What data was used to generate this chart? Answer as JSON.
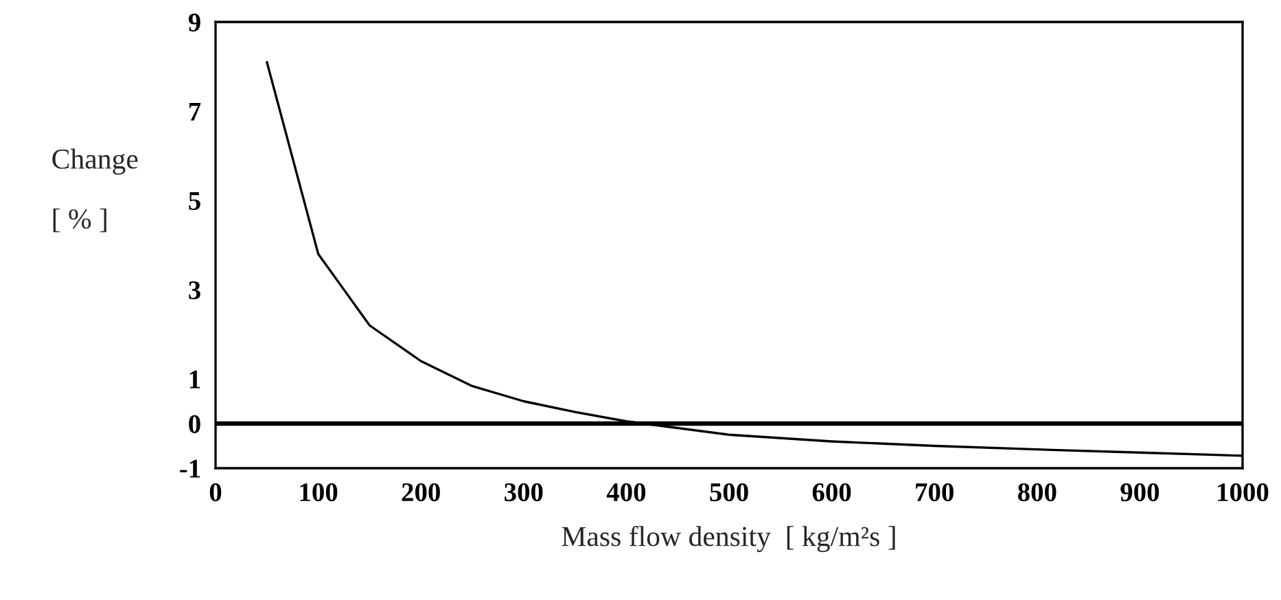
{
  "chart_data": {
    "type": "line",
    "xlabel": "Mass flow density  [ kg/m²s ]",
    "ylabel": "Change\n\n[ % ]",
    "x": [
      50,
      100,
      150,
      200,
      250,
      300,
      350,
      400,
      500,
      600,
      700,
      800,
      900,
      1000
    ],
    "series": [
      {
        "color": "#000000",
        "values": [
          8.1,
          3.8,
          2.2,
          1.4,
          0.84,
          0.5,
          0.26,
          0.05,
          -0.25,
          -0.4,
          -0.5,
          -0.58,
          -0.65,
          -0.72
        ]
      }
    ],
    "xlim": [
      0,
      1000
    ],
    "ylim": [
      -1,
      9
    ],
    "xticks": [
      0,
      100,
      200,
      300,
      400,
      500,
      600,
      700,
      800,
      900,
      1000
    ],
    "yticks": [
      -1,
      0,
      1,
      3,
      5,
      7,
      9
    ],
    "ref_lines": [
      {
        "axis": "y",
        "value": 0,
        "color": "#000000"
      }
    ],
    "grid": false,
    "legend": false,
    "marker": "none",
    "line_style": "solid"
  }
}
